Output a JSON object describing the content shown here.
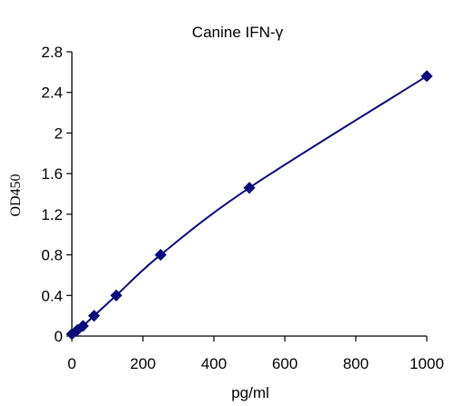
{
  "chart_data": {
    "type": "scatter",
    "title": "Canine IFN-γ",
    "xlabel": "pg/ml",
    "ylabel": "OD450",
    "xlim": [
      0,
      1000
    ],
    "ylim": [
      0,
      2.8
    ],
    "xticks": [
      "0",
      "200",
      "400",
      "600",
      "800",
      "1000"
    ],
    "yticks": [
      "0",
      "0.4",
      "0.8",
      "1.2",
      "1.6",
      "2",
      "2.4",
      "2.8"
    ],
    "grid": false,
    "legend": "none",
    "series": [
      {
        "x": [
          0,
          15.6,
          31.25,
          62.5,
          125,
          250,
          500,
          1000
        ],
        "y": [
          0.02,
          0.06,
          0.1,
          0.2,
          0.4,
          0.8,
          1.46,
          2.56
        ],
        "marker": "diamond",
        "line": "smooth"
      }
    ],
    "colors": {
      "series": "#0b0b7a",
      "axis": "#000000"
    }
  }
}
